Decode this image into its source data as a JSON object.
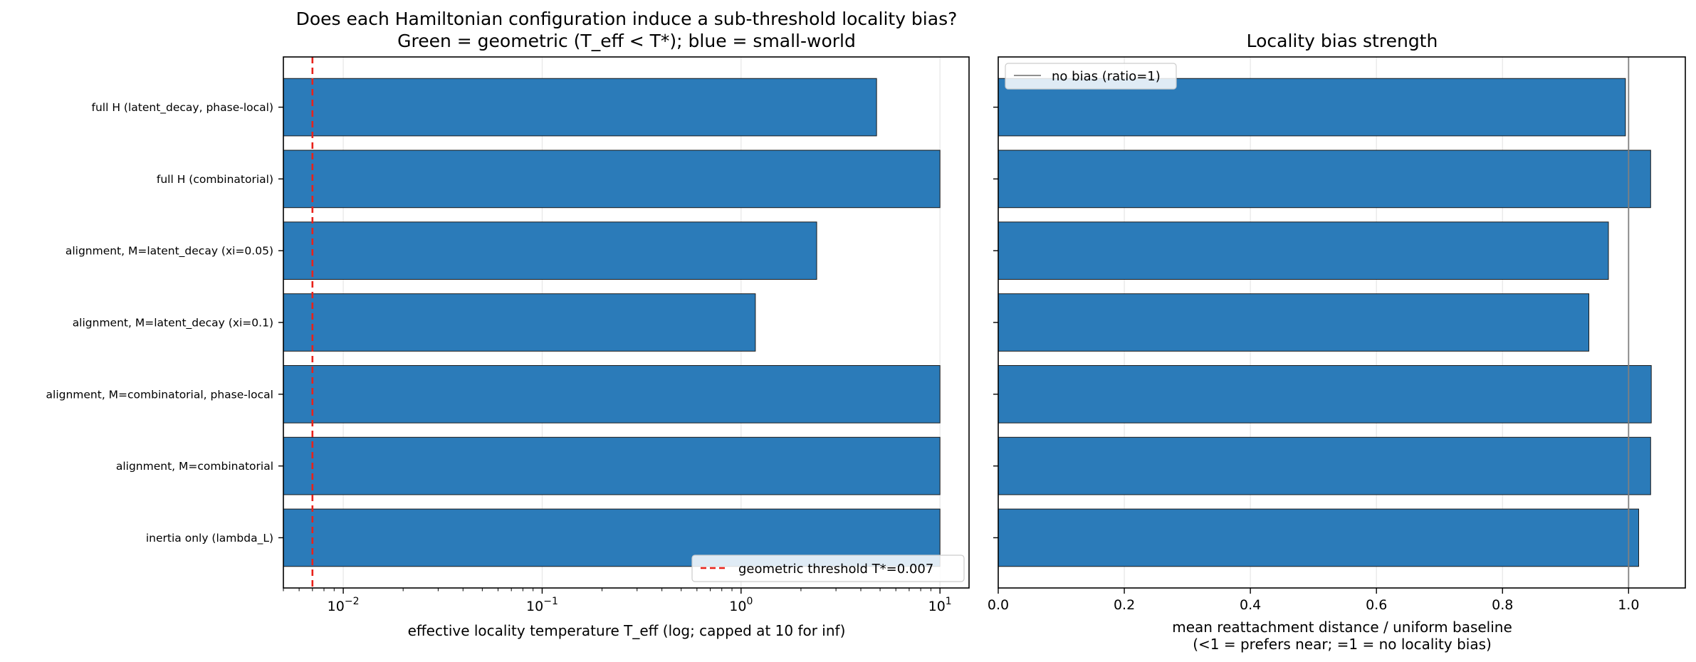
{
  "chart_data": [
    {
      "type": "bar",
      "orientation": "horizontal",
      "title": "Does each Hamiltonian configuration induce a sub-threshold locality bias?",
      "subtitle": "Green = geometric (T_eff < T*); blue = small-world",
      "xlabel": "effective locality temperature T_eff (log; capped at 10 for inf)",
      "ylabel": "",
      "xscale": "log",
      "xlim": [
        0.005,
        14
      ],
      "grid": "x",
      "categories": [
        "full H (latent_decay, phase-local)",
        "full H (combinatorial)",
        "alignment, M=latent_decay (xi=0.05)",
        "alignment, M=latent_decay (xi=0.1)",
        "alignment, M=combinatorial, phase-local",
        "alignment, M=combinatorial",
        "inertia only (lambda_L)"
      ],
      "values": [
        4.8,
        10,
        2.4,
        1.18,
        10,
        10,
        10
      ],
      "bar_color": "#2b7bb9",
      "x_ticks": [
        {
          "value": 0.01,
          "base": "10",
          "exp": "−2"
        },
        {
          "value": 0.1,
          "base": "10",
          "exp": "−1"
        },
        {
          "value": 1,
          "base": "10",
          "exp": "0"
        },
        {
          "value": 10,
          "base": "10",
          "exp": "1"
        }
      ],
      "threshold": {
        "value": 0.007,
        "color": "#e8221b",
        "label": "geometric threshold T*=0.007"
      },
      "legend_position": "lower-right"
    },
    {
      "type": "bar",
      "orientation": "horizontal",
      "title": "Locality bias strength",
      "xlabel": "mean reattachment distance / uniform baseline",
      "xlabel2": "(<1 = prefers near; =1 = no locality bias)",
      "ylabel": "",
      "xscale": "linear",
      "xlim": [
        0,
        1.09
      ],
      "grid": "x",
      "values": [
        0.995,
        1.035,
        0.968,
        0.937,
        1.036,
        1.035,
        1.016
      ],
      "bar_color": "#2b7bb9",
      "x_ticks": [
        "0.0",
        "0.2",
        "0.4",
        "0.6",
        "0.8",
        "1.0"
      ],
      "reference": {
        "value": 1.0,
        "color": "#808080",
        "label": "no bias (ratio=1)"
      },
      "legend_position": "upper-left"
    }
  ]
}
